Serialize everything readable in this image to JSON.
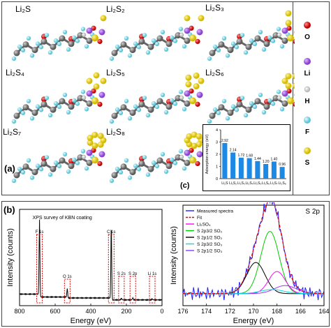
{
  "panel_a": {
    "label": "(a)",
    "molecules": [
      "Li₂S",
      "Li₂S₂",
      "Li₂S₃",
      "Li₂S₄",
      "Li₂S₅",
      "Li₂S₆",
      "Li₂S₇",
      "Li₂S₈"
    ],
    "legend": [
      {
        "symbol": "O",
        "color": "#d40000"
      },
      {
        "symbol": "Li",
        "color": "#a05cd6"
      },
      {
        "symbol": "H",
        "color": "#e8e8e8"
      },
      {
        "symbol": "F",
        "color": "#7ad6e6"
      },
      {
        "symbol": "S",
        "color": "#e8d21a"
      }
    ]
  },
  "panel_c": {
    "label": "(c)"
  },
  "panel_b": {
    "label": "(b)"
  },
  "chart_data": [
    {
      "type": "bar",
      "ylabel": "Adsorption energy (eV)",
      "categories": [
        "Li₂S",
        "Li₂S₂",
        "Li₂S₃",
        "Li₂S₄",
        "Li₂S₅",
        "Li₂S₆",
        "Li₂S₇",
        "Li₂S₈"
      ],
      "values": [
        2.92,
        2.14,
        1.72,
        1.68,
        1.44,
        1.2,
        1.4,
        0.96
      ],
      "value_labels": [
        "2.92",
        "2.14",
        "1.72",
        "1.68",
        "1.44",
        "1.20",
        "1.40",
        "0.96"
      ],
      "yticks": [
        "0",
        "1",
        "2",
        "3",
        "4"
      ],
      "ylim": [
        0,
        4
      ],
      "color": "#1e88e5"
    },
    {
      "type": "line",
      "title": "XPS survey of KBN coating",
      "xlabel": "Energy (eV)",
      "ylabel": "Intensity (counts)",
      "xticks": [
        "800",
        "600",
        "400",
        "200",
        "0"
      ],
      "xlim": [
        800,
        0
      ],
      "peak_labels": [
        "F 1s",
        "O 1s",
        "C 1s",
        "S 2s",
        "S 2p",
        "Li 1s"
      ],
      "peak_positions": [
        688,
        532,
        285,
        228,
        164,
        55
      ]
    },
    {
      "type": "line",
      "title": "S 2p",
      "xlabel": "Energy (eV)",
      "ylabel": "Intensity (counts)",
      "xticks": [
        "176",
        "174",
        "172",
        "170",
        "168",
        "166",
        "164"
      ],
      "xlim": [
        176,
        164
      ],
      "series": [
        {
          "name": "Measured spectra",
          "color": "#2020ff"
        },
        {
          "name": "Fit",
          "color": "#e00000"
        },
        {
          "name": "Li₂SO₄",
          "color": "#ff00ff"
        },
        {
          "name": "S 2p3/2 SO₂",
          "color": "#00cc00"
        },
        {
          "name": "S 2p1/2 SO₂",
          "color": "#000000"
        },
        {
          "name": "S 2p3/2 SO₃",
          "color": "#00dddd"
        },
        {
          "name": "S 2p1/2 SO₃",
          "color": "#9933ff"
        }
      ],
      "components": [
        {
          "center": 168.6,
          "amplitude": 0.62,
          "width": 1.1
        },
        {
          "center": 169.8,
          "amplitude": 0.31,
          "width": 1.1
        },
        {
          "center": 168.0,
          "amplitude": 0.22,
          "width": 1.0
        },
        {
          "center": 167.3,
          "amplitude": 0.08,
          "width": 1.3
        },
        {
          "center": 168.4,
          "amplitude": 0.04,
          "width": 1.4
        }
      ]
    }
  ]
}
